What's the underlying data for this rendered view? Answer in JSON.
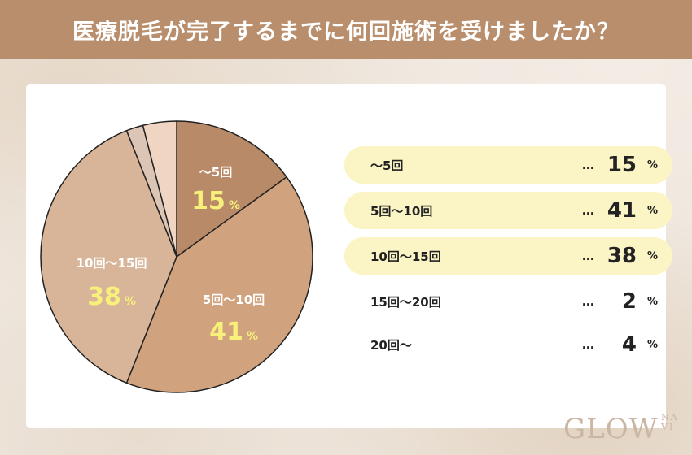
{
  "header": {
    "title": "医療脱毛が完了するまでに何回施術を受けましたか？"
  },
  "colors": {
    "header_bg": "#b98e6c",
    "highlight_row": "#fbf4c4",
    "percent_text": "#f7f07a"
  },
  "chart_data": {
    "type": "pie",
    "categories": [
      "〜5回",
      "5回〜10回",
      "10回〜15回",
      "15回〜20回",
      "20回〜"
    ],
    "values": [
      15,
      41,
      38,
      2,
      4
    ],
    "unit": "%",
    "slice_colors": [
      "#b98a67",
      "#d0a27e",
      "#d8b598",
      "#dcc5b4",
      "#f0d6c2"
    ]
  },
  "legend": {
    "dots": "…",
    "unit": "%",
    "rows": [
      {
        "label": "〜5回",
        "value": "15",
        "highlight": true
      },
      {
        "label": "5回〜10回",
        "value": "41",
        "highlight": true
      },
      {
        "label": "10回〜15回",
        "value": "38",
        "highlight": true
      },
      {
        "label": "15回〜20回",
        "value": "2",
        "highlight": false
      },
      {
        "label": "20回〜",
        "value": "4",
        "highlight": false
      }
    ]
  },
  "pie_labels": [
    {
      "cat": "〜5回",
      "pct": "15",
      "unit": "%"
    },
    {
      "cat": "5回〜10回",
      "pct": "41",
      "unit": "%"
    },
    {
      "cat": "10回〜15回",
      "pct": "38",
      "unit": "%"
    }
  ],
  "logo": {
    "main": "GLOW",
    "sub_top": "NA",
    "sub_bottom": "VI"
  }
}
